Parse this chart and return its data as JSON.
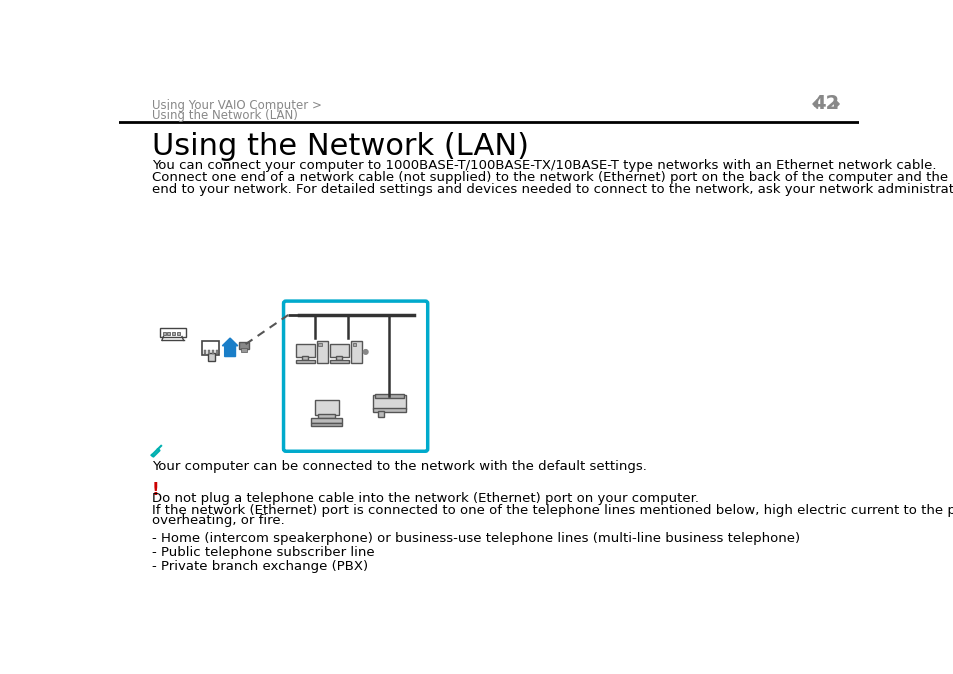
{
  "bg_color": "#ffffff",
  "header_breadcrumb_line1": "Using Your VAIO Computer >",
  "header_breadcrumb_line2": "Using the Network (LAN)",
  "header_page_num": "42",
  "header_line_color": "#000000",
  "title": "Using the Network (LAN)",
  "body_text": "You can connect your computer to 1000BASE-T/100BASE-TX/10BASE-T type networks with an Ethernet network cable.\nConnect one end of a network cable (not supplied) to the network (Ethernet) port on the back of the computer and the other\nend to your network. For detailed settings and devices needed to connect to the network, ask your network administrator.",
  "note_symbol_color": "#00b0b0",
  "note_text": "Your computer can be connected to the network with the default settings.",
  "warning_symbol_color": "#cc0000",
  "warning_text_line1": "Do not plug a telephone cable into the network (Ethernet) port on your computer.",
  "warning_text_line2": "If the network (Ethernet) port is connected to one of the telephone lines mentioned below, high electric current to the port may cause damage,\noverheating, or fire.",
  "bullet_items": [
    "- Home (intercom speakerphone) or business-use telephone lines (multi-line business telephone)",
    "- Public telephone subscriber line",
    "- Private branch exchange (PBX)"
  ],
  "diagram_box_color": "#00aacc",
  "breadcrumb_color": "#888888",
  "title_fontsize": 22,
  "body_fontsize": 9.5,
  "header_fontsize": 8.5,
  "page_num_fontsize": 14
}
